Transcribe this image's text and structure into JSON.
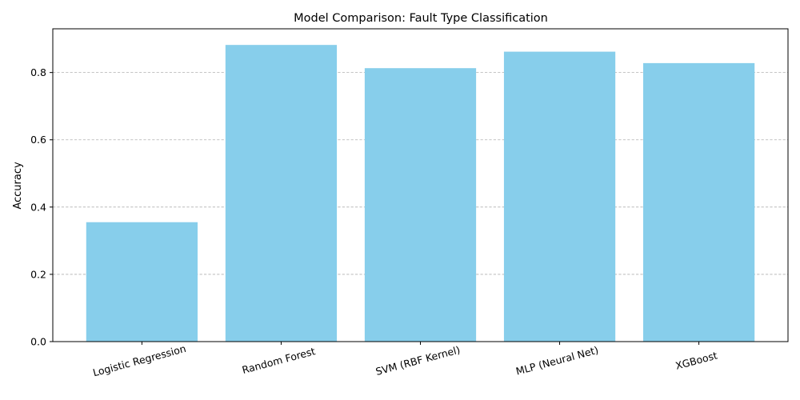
{
  "chart_data": {
    "type": "bar",
    "title": "Model Comparison: Fault Type Classification",
    "xlabel": "",
    "ylabel": "Accuracy",
    "categories": [
      "Logistic Regression",
      "Random Forest",
      "SVM (RBF Kernel)",
      "MLP (Neural Net)",
      "XGBoost"
    ],
    "values": [
      0.355,
      0.882,
      0.813,
      0.862,
      0.828
    ],
    "ylim": [
      0,
      0.93
    ],
    "yticks": [
      0.0,
      0.2,
      0.4,
      0.6,
      0.8
    ],
    "ytick_labels": [
      "0.0",
      "0.2",
      "0.4",
      "0.6",
      "0.8"
    ],
    "x_tick_rotation_deg": 15,
    "grid": "y-dashed",
    "bar_color": "#87ceeb"
  }
}
